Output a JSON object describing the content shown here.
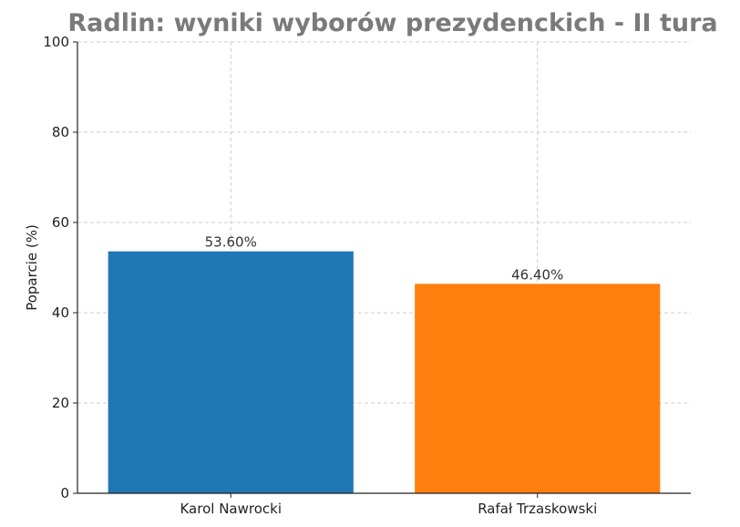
{
  "chart_data": {
    "type": "bar",
    "title": "Radlin: wyniki wyborów prezydenckich - II tura",
    "xlabel": "",
    "ylabel": "Poparcie (%)",
    "ylim": [
      0,
      100
    ],
    "yticks": [
      0,
      20,
      40,
      60,
      80,
      100
    ],
    "categories": [
      "Karol Nawrocki",
      "Rafał Trzaskowski"
    ],
    "values": [
      53.6,
      46.4
    ],
    "data_labels": [
      "53.60%",
      "46.40%"
    ],
    "colors": [
      "#1f77b4",
      "#ff7f0e"
    ],
    "grid": true,
    "legend": "none"
  }
}
